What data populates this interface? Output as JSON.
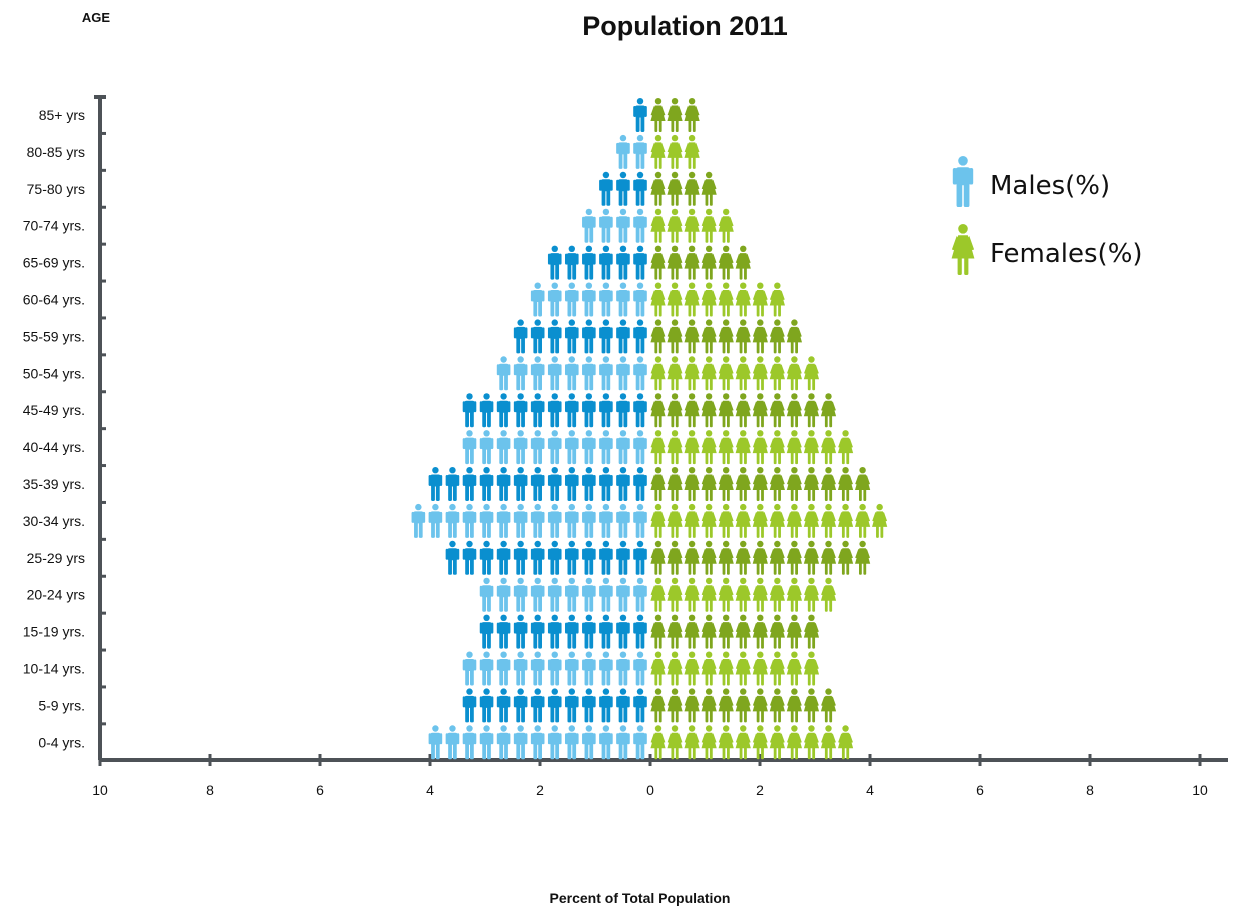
{
  "chart_data": {
    "type": "bar",
    "title": "Population 2011",
    "ylabel": "AGE",
    "xlabel": "Percent of Total Population",
    "categories": [
      "85+ yrs",
      "80-85 yrs",
      "75-80 yrs",
      "70-74 yrs.",
      "65-69 yrs.",
      "60-64 yrs.",
      "55-59 yrs.",
      "50-54 yrs.",
      "45-49 yrs.",
      "40-44 yrs.",
      "35-39 yrs.",
      "30-34 yrs.",
      "25-29 yrs",
      "20-24 yrs",
      "15-19 yrs.",
      "10-14 yrs.",
      "5-9 yrs.",
      "0-4 yrs."
    ],
    "series": [
      {
        "name": "Males(%)",
        "values": [
          0.2,
          0.5,
          0.9,
          1.3,
          1.8,
          2.3,
          2.5,
          2.8,
          3.3,
          3.5,
          4.1,
          4.3,
          3.8,
          3.2,
          3.2,
          3.5,
          3.5,
          4.1
        ]
      },
      {
        "name": "Females(%)",
        "values": [
          0.9,
          0.9,
          1.2,
          1.5,
          1.8,
          2.5,
          2.8,
          3.1,
          3.4,
          3.7,
          4.0,
          4.4,
          4.0,
          3.4,
          3.1,
          3.1,
          3.4,
          3.7
        ]
      }
    ],
    "x_ticks": [
      "10",
      "8",
      "6",
      "4",
      "2",
      "0",
      "2",
      "4",
      "6",
      "8",
      "10"
    ],
    "xlim": [
      -10,
      10
    ],
    "icon_unit_percent": 0.31,
    "legend_position": "right",
    "grid": false,
    "colors": {
      "male_dark": "#0a8fcf",
      "male_light": "#6cc3ec",
      "female_dark": "#7fa61e",
      "female_light": "#9cc82a",
      "axis": "#4d5257"
    }
  }
}
